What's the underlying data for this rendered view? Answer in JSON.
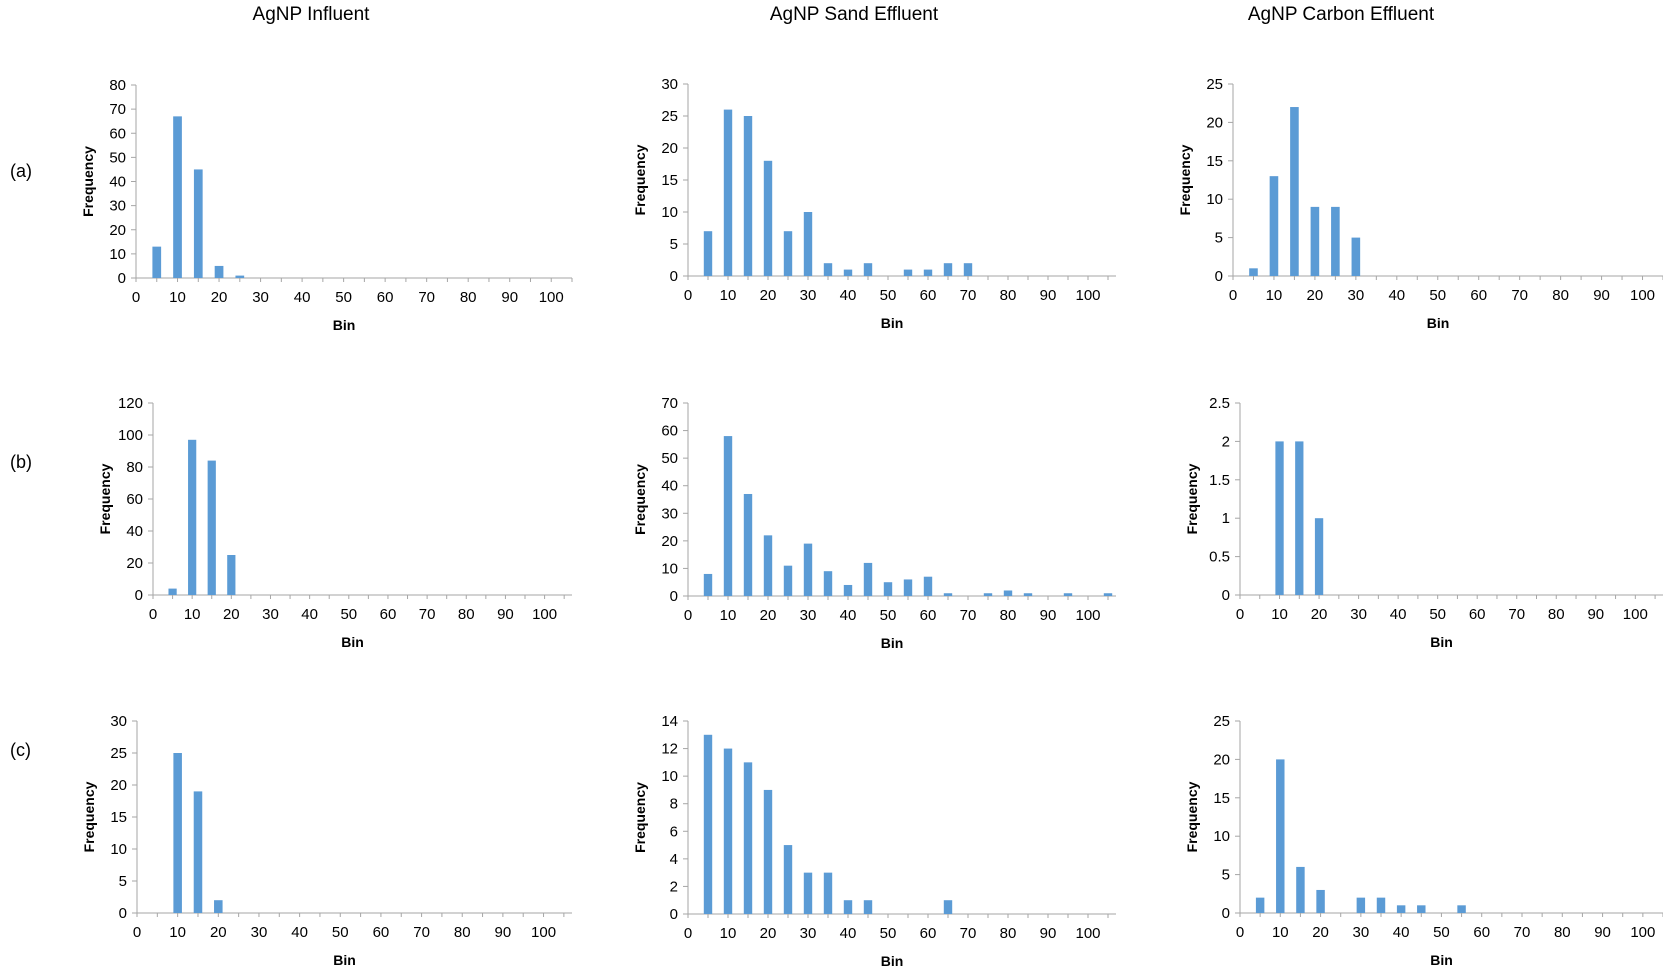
{
  "column_titles": [
    "AgNP Influent",
    "AgNP Sand Effluent",
    "AgNP Carbon Effluent"
  ],
  "row_labels": [
    "(a)",
    "(b)",
    "(c)"
  ],
  "colors": {
    "bar": "#5b9bd5",
    "axis": "#a6a6a6",
    "text": "#000000"
  },
  "chart_data": [
    {
      "id": "a-influent",
      "type": "bar",
      "xlabel": "Bin",
      "ylabel": "Frequency",
      "xlim": [
        0,
        105
      ],
      "xticks": [
        0,
        10,
        20,
        30,
        40,
        50,
        60,
        70,
        80,
        90,
        100
      ],
      "ylim": [
        0,
        80
      ],
      "yticks": [
        0,
        10,
        20,
        30,
        40,
        50,
        60,
        70,
        80
      ],
      "points": [
        [
          5,
          13
        ],
        [
          10,
          67
        ],
        [
          15,
          45
        ],
        [
          20,
          5
        ],
        [
          25,
          1
        ]
      ]
    },
    {
      "id": "a-sand",
      "type": "bar",
      "xlabel": "Bin",
      "ylabel": "Frequency",
      "xlim": [
        0,
        107
      ],
      "xticks": [
        0,
        10,
        20,
        30,
        40,
        50,
        60,
        70,
        80,
        90,
        100
      ],
      "ylim": [
        0,
        30
      ],
      "yticks": [
        0,
        5,
        10,
        15,
        20,
        25,
        30
      ],
      "points": [
        [
          5,
          7
        ],
        [
          10,
          26
        ],
        [
          15,
          25
        ],
        [
          20,
          18
        ],
        [
          25,
          7
        ],
        [
          30,
          10
        ],
        [
          35,
          2
        ],
        [
          40,
          1
        ],
        [
          45,
          2
        ],
        [
          55,
          1
        ],
        [
          60,
          1
        ],
        [
          65,
          2
        ],
        [
          70,
          2
        ]
      ]
    },
    {
      "id": "a-carbon",
      "type": "bar",
      "xlabel": "Bin",
      "ylabel": "Frequency",
      "xlim": [
        0,
        105
      ],
      "xticks": [
        0,
        10,
        20,
        30,
        40,
        50,
        60,
        70,
        80,
        90,
        100
      ],
      "ylim": [
        0,
        25
      ],
      "yticks": [
        0,
        5,
        10,
        15,
        20,
        25
      ],
      "points": [
        [
          5,
          1
        ],
        [
          10,
          13
        ],
        [
          15,
          22
        ],
        [
          20,
          9
        ],
        [
          25,
          9
        ],
        [
          30,
          5
        ]
      ]
    },
    {
      "id": "b-influent",
      "type": "bar",
      "xlabel": "Bin",
      "ylabel": "Frequency",
      "xlim": [
        0,
        107
      ],
      "xticks": [
        0,
        10,
        20,
        30,
        40,
        50,
        60,
        70,
        80,
        90,
        100
      ],
      "ylim": [
        0,
        120
      ],
      "yticks": [
        0,
        20,
        40,
        60,
        80,
        100,
        120
      ],
      "points": [
        [
          5,
          4
        ],
        [
          10,
          97
        ],
        [
          15,
          84
        ],
        [
          20,
          25
        ]
      ]
    },
    {
      "id": "b-sand",
      "type": "bar",
      "xlabel": "Bin",
      "ylabel": "Frequency",
      "xlim": [
        0,
        107
      ],
      "xticks": [
        0,
        10,
        20,
        30,
        40,
        50,
        60,
        70,
        80,
        90,
        100
      ],
      "ylim": [
        0,
        70
      ],
      "yticks": [
        0,
        10,
        20,
        30,
        40,
        50,
        60,
        70
      ],
      "points": [
        [
          5,
          8
        ],
        [
          10,
          58
        ],
        [
          15,
          37
        ],
        [
          20,
          22
        ],
        [
          25,
          11
        ],
        [
          30,
          19
        ],
        [
          35,
          9
        ],
        [
          40,
          4
        ],
        [
          45,
          12
        ],
        [
          50,
          5
        ],
        [
          55,
          6
        ],
        [
          60,
          7
        ],
        [
          65,
          1
        ],
        [
          75,
          1
        ],
        [
          80,
          2
        ],
        [
          85,
          1
        ],
        [
          95,
          1
        ],
        [
          105,
          1
        ]
      ]
    },
    {
      "id": "b-carbon",
      "type": "bar",
      "xlabel": "Bin",
      "ylabel": "Frequency",
      "xlim": [
        0,
        107
      ],
      "xticks": [
        0,
        10,
        20,
        30,
        40,
        50,
        60,
        70,
        80,
        90,
        100
      ],
      "ylim": [
        0,
        2.5
      ],
      "yticks": [
        0,
        0.5,
        1,
        1.5,
        2,
        2.5
      ],
      "points": [
        [
          10,
          2
        ],
        [
          15,
          2
        ],
        [
          20,
          1
        ]
      ]
    },
    {
      "id": "c-influent",
      "type": "bar",
      "xlabel": "Bin",
      "ylabel": "Frequency",
      "xlim": [
        0,
        107
      ],
      "xticks": [
        0,
        10,
        20,
        30,
        40,
        50,
        60,
        70,
        80,
        90,
        100
      ],
      "ylim": [
        0,
        30
      ],
      "yticks": [
        0,
        5,
        10,
        15,
        20,
        25,
        30
      ],
      "points": [
        [
          10,
          25
        ],
        [
          15,
          19
        ],
        [
          20,
          2
        ]
      ]
    },
    {
      "id": "c-sand",
      "type": "bar",
      "xlabel": "Bin",
      "ylabel": "Frequency",
      "xlim": [
        0,
        107
      ],
      "xticks": [
        0,
        10,
        20,
        30,
        40,
        50,
        60,
        70,
        80,
        90,
        100
      ],
      "ylim": [
        0,
        14
      ],
      "yticks": [
        0,
        2,
        4,
        6,
        8,
        10,
        12,
        14
      ],
      "points": [
        [
          5,
          13
        ],
        [
          10,
          12
        ],
        [
          15,
          11
        ],
        [
          20,
          9
        ],
        [
          25,
          5
        ],
        [
          30,
          3
        ],
        [
          35,
          3
        ],
        [
          40,
          1
        ],
        [
          45,
          1
        ],
        [
          65,
          1
        ]
      ]
    },
    {
      "id": "c-carbon",
      "type": "bar",
      "xlabel": "Bin",
      "ylabel": "Frequency",
      "xlim": [
        0,
        105
      ],
      "xticks": [
        0,
        10,
        20,
        30,
        40,
        50,
        60,
        70,
        80,
        90,
        100
      ],
      "ylim": [
        0,
        25
      ],
      "yticks": [
        0,
        5,
        10,
        15,
        20,
        25
      ],
      "points": [
        [
          5,
          2
        ],
        [
          10,
          20
        ],
        [
          15,
          6
        ],
        [
          20,
          3
        ],
        [
          30,
          2
        ],
        [
          35,
          2
        ],
        [
          40,
          1
        ],
        [
          45,
          1
        ],
        [
          55,
          1
        ]
      ]
    }
  ]
}
